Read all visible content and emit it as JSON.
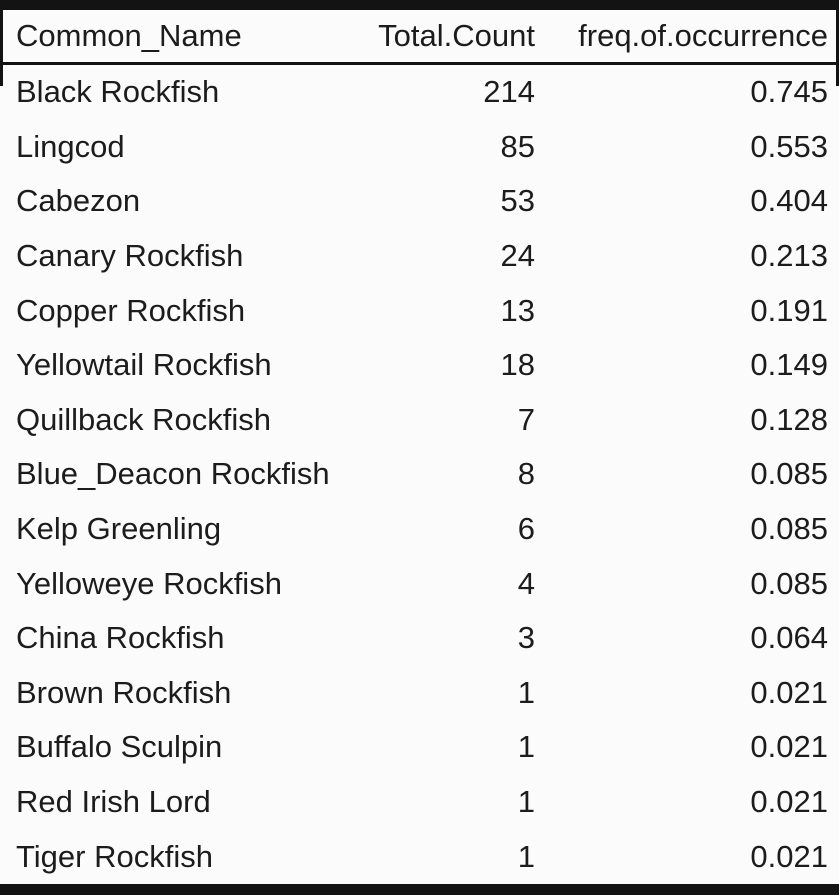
{
  "colors": {
    "background": "#fbfbfb",
    "text": "#1c1c1c",
    "rule": "#131313"
  },
  "table": {
    "columns": [
      "Common_Name",
      "Total.Count",
      "freq.of.occurrence"
    ],
    "rows": [
      {
        "name": "Black Rockfish",
        "count": "214",
        "freq": "0.745"
      },
      {
        "name": "Lingcod",
        "count": "85",
        "freq": "0.553"
      },
      {
        "name": "Cabezon",
        "count": "53",
        "freq": "0.404"
      },
      {
        "name": "Canary Rockfish",
        "count": "24",
        "freq": "0.213"
      },
      {
        "name": "Copper Rockfish",
        "count": "13",
        "freq": "0.191"
      },
      {
        "name": "Yellowtail Rockfish",
        "count": "18",
        "freq": "0.149"
      },
      {
        "name": "Quillback Rockfish",
        "count": "7",
        "freq": "0.128"
      },
      {
        "name": "Blue_Deacon Rockfish",
        "count": "8",
        "freq": "0.085"
      },
      {
        "name": "Kelp Greenling",
        "count": "6",
        "freq": "0.085"
      },
      {
        "name": "Yelloweye Rockfish",
        "count": "4",
        "freq": "0.085"
      },
      {
        "name": "China Rockfish",
        "count": "3",
        "freq": "0.064"
      },
      {
        "name": "Brown Rockfish",
        "count": "1",
        "freq": "0.021"
      },
      {
        "name": "Buffalo Sculpin",
        "count": "1",
        "freq": "0.021"
      },
      {
        "name": "Red Irish Lord",
        "count": "1",
        "freq": "0.021"
      },
      {
        "name": "Tiger Rockfish",
        "count": "1",
        "freq": "0.021"
      }
    ]
  },
  "chart_data": {
    "type": "table",
    "title": "",
    "columns": [
      "Common_Name",
      "Total.Count",
      "freq.of.occurrence"
    ],
    "categories": [
      "Black Rockfish",
      "Lingcod",
      "Cabezon",
      "Canary Rockfish",
      "Copper Rockfish",
      "Yellowtail Rockfish",
      "Quillback Rockfish",
      "Blue_Deacon Rockfish",
      "Kelp Greenling",
      "Yelloweye Rockfish",
      "China Rockfish",
      "Brown Rockfish",
      "Buffalo Sculpin",
      "Red Irish Lord",
      "Tiger Rockfish"
    ],
    "series": [
      {
        "name": "Total.Count",
        "values": [
          214,
          85,
          53,
          24,
          13,
          18,
          7,
          8,
          6,
          4,
          3,
          1,
          1,
          1,
          1
        ]
      },
      {
        "name": "freq.of.occurrence",
        "values": [
          0.745,
          0.553,
          0.404,
          0.213,
          0.191,
          0.149,
          0.128,
          0.085,
          0.085,
          0.085,
          0.064,
          0.021,
          0.021,
          0.021,
          0.021
        ]
      }
    ]
  }
}
